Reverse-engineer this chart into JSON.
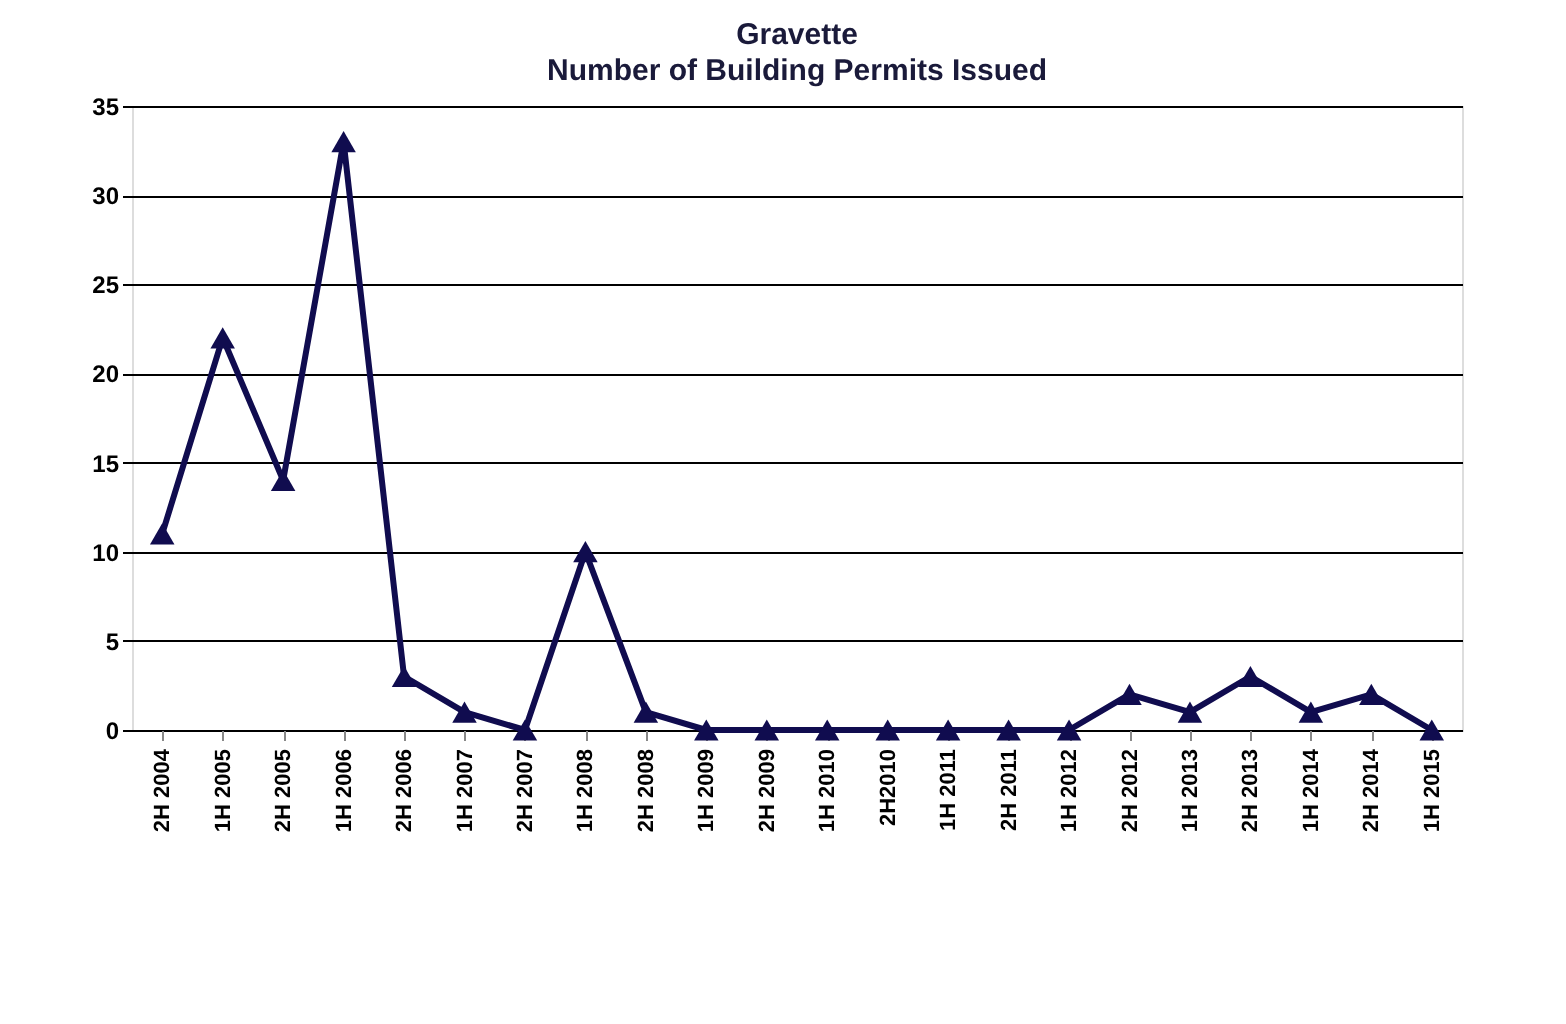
{
  "chart_data": {
    "type": "line",
    "title": "Gravette",
    "subtitle": "Number of Building Permits Issued",
    "categories": [
      "2H 2004",
      "1H 2005",
      "2H 2005",
      "1H 2006",
      "2H 2006",
      "1H 2007",
      "2H 2007",
      "1H 2008",
      "2H 2008",
      "1H 2009",
      "2H 2009",
      "1H 2010",
      "2H2010",
      "1H 2011",
      "2H 2011",
      "1H 2012",
      "2H 2012",
      "1H 2013",
      "2H 2013",
      "1H 2014",
      "2H 2014",
      "1H 2015"
    ],
    "series": [
      {
        "color": "#100c4f",
        "values": [
          11,
          22,
          14,
          33,
          3,
          1,
          0,
          10,
          1,
          0,
          0,
          0,
          0,
          0,
          0,
          0,
          2,
          1,
          3,
          1,
          2,
          0
        ]
      }
    ],
    "ylim": [
      0,
      35
    ],
    "yticks": [
      0,
      5,
      10,
      15,
      20,
      25,
      30,
      35
    ],
    "grid": "y",
    "marker": "triangle",
    "line_style": "solid",
    "legend": false
  }
}
